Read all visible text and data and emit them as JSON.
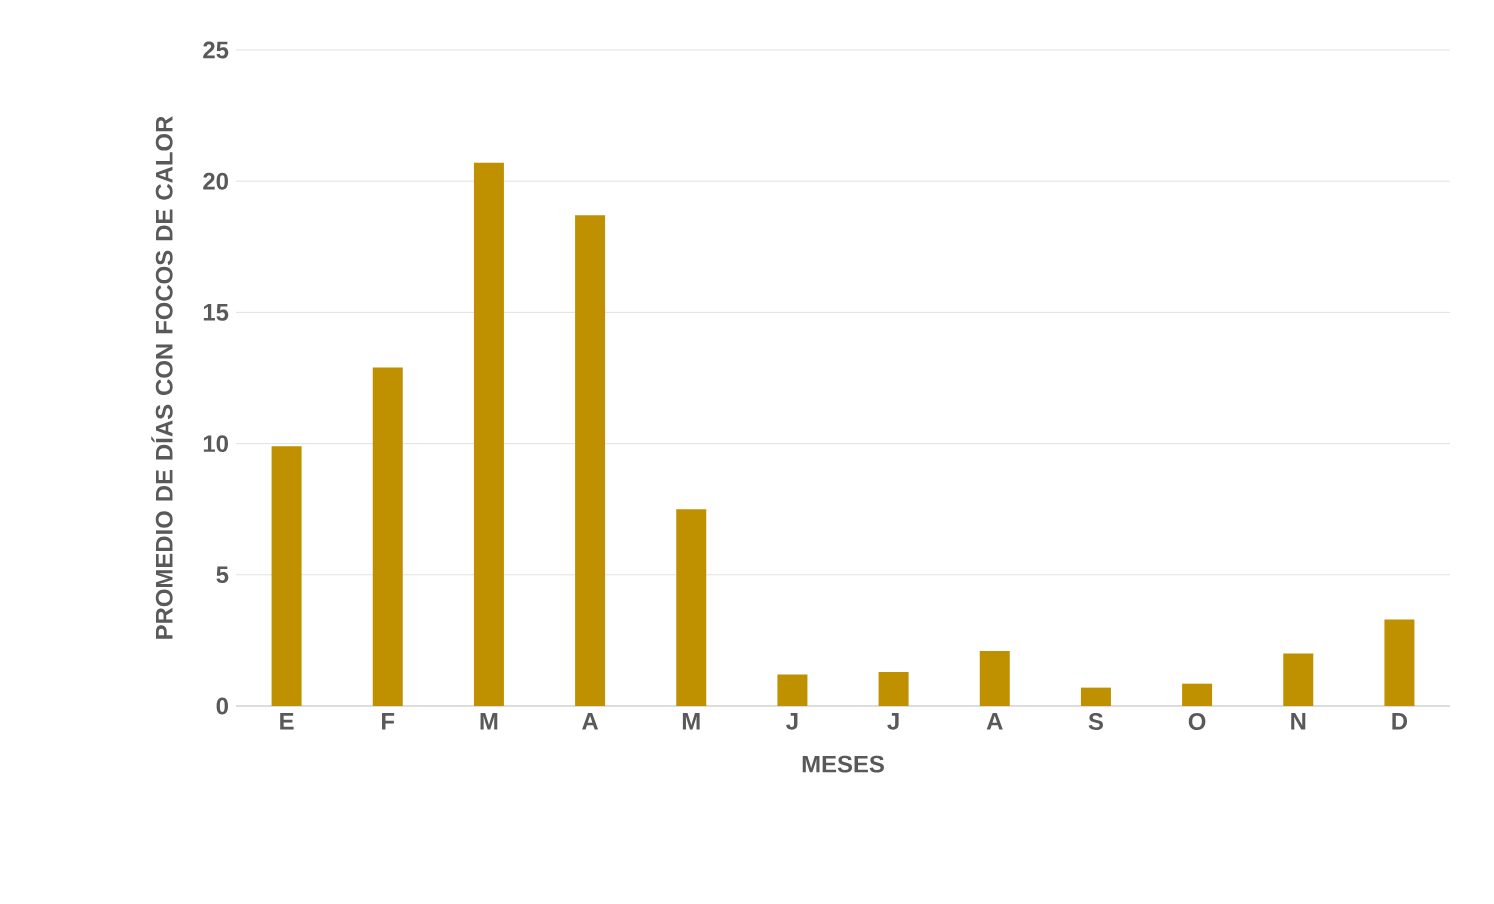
{
  "chart_data": {
    "type": "bar",
    "xlabel": "MESES",
    "ylabel": "PROMEDIO DE DÍAS CON FOCOS DE CALOR",
    "categories": [
      "E",
      "F",
      "M",
      "A",
      "M",
      "J",
      "J",
      "A",
      "S",
      "O",
      "N",
      "D"
    ],
    "values": [
      9.9,
      12.9,
      20.7,
      18.7,
      7.5,
      1.2,
      1.3,
      2.1,
      0.7,
      0.85,
      2.0,
      3.3
    ],
    "color": "#bf9000",
    "ylim": [
      0,
      25
    ],
    "yticks": [
      0,
      5,
      10,
      15,
      20,
      25
    ],
    "grid": "y"
  }
}
